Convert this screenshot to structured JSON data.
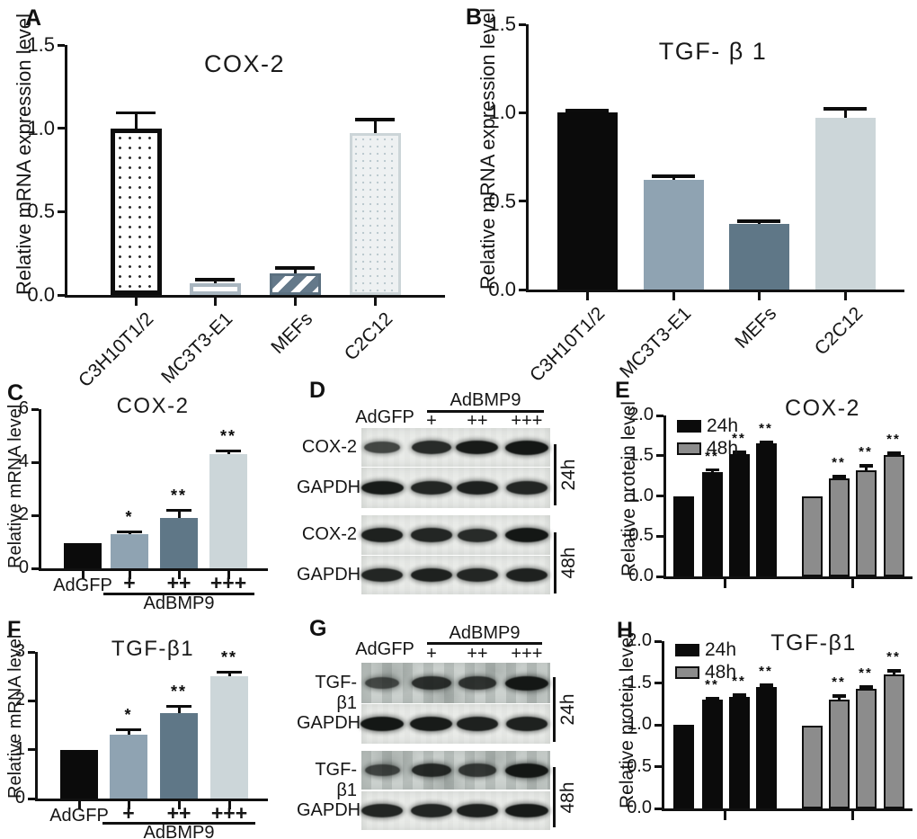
{
  "colors": {
    "black_bar": "#0b0b0b",
    "bluegray_bar": "#8fa3b2",
    "slate_bar": "#5f7787",
    "pale_bar": "#ccd6d9",
    "gray_48h_bar": "#8c8c8c",
    "stripe_slate": "#64798a",
    "outline_light": "#a9b6c0",
    "blot_strip_bg": "#e9ebe8",
    "blot_noisy_bg": "#c9cfcc",
    "band": "#141715",
    "axis": "#111111"
  },
  "chart_data": [
    {
      "panel": "A",
      "type": "bar",
      "title": "COX-2",
      "ylabel": "Relative mRNA expression level",
      "ylim": [
        0,
        1.5
      ],
      "yticks": [
        "0.0",
        "0.5",
        "1.0",
        "1.5"
      ],
      "categories": [
        "C3H10T1/2",
        "MC3T3-E1",
        "MEFs",
        "C2C12"
      ],
      "values": [
        1.0,
        0.07,
        0.13,
        0.97
      ],
      "errors": [
        0.09,
        0.02,
        0.03,
        0.08
      ],
      "sig": [
        "",
        "",
        "",
        ""
      ],
      "bar_styles": [
        "pattern-dots-dark",
        "outline-light",
        "pattern-stripes",
        "pattern-dots-light"
      ]
    },
    {
      "panel": "B",
      "type": "bar",
      "title": "TGF- β 1",
      "ylabel": "Relative mRNA expression level",
      "ylim": [
        0,
        1.5
      ],
      "yticks": [
        "0.0",
        "0.5",
        "1.0",
        "1.5"
      ],
      "categories": [
        "C3H10T1/2",
        "MC3T3-E1",
        "MEFs",
        "C2C12"
      ],
      "values": [
        1.0,
        0.62,
        0.37,
        0.97
      ],
      "errors": [
        0.01,
        0.02,
        0.015,
        0.05
      ],
      "sig": [
        "",
        "",
        "",
        ""
      ],
      "bar_styles": [
        "solid-black",
        "solid-bluegray",
        "solid-slate",
        "solid-pale"
      ]
    },
    {
      "panel": "C",
      "type": "bar",
      "title": "COX-2",
      "ylabel": "Relative mRNA level",
      "ylim": [
        0,
        6
      ],
      "yticks": [
        "0",
        "2",
        "4",
        "6"
      ],
      "categories": [
        "AdGFP",
        "+",
        "++",
        "+++"
      ],
      "group_label": "AdBMP9",
      "values": [
        0.95,
        1.3,
        1.9,
        4.3
      ],
      "errors": [
        0,
        0.07,
        0.28,
        0.12
      ],
      "sig": [
        "",
        "*",
        "**",
        "**"
      ],
      "bar_styles": [
        "solid-black",
        "solid-bluegray",
        "solid-slate",
        "solid-pale"
      ]
    },
    {
      "panel": "D",
      "type": "blot",
      "header": {
        "control": "AdGFP",
        "treatment": "AdBMP9",
        "doses": [
          "+",
          "++",
          "+++"
        ]
      },
      "groups": [
        {
          "time": "24h",
          "rows": [
            {
              "label": "COX-2",
              "noisy": false,
              "lanes": [
                0.55,
                0.8,
                0.95,
                1
              ]
            },
            {
              "label": "GAPDH",
              "noisy": false,
              "lanes": [
                0.95,
                0.85,
                0.9,
                0.85
              ]
            }
          ]
        },
        {
          "time": "48h",
          "rows": [
            {
              "label": "COX-2",
              "noisy": false,
              "lanes": [
                0.9,
                0.85,
                0.8,
                1
              ]
            },
            {
              "label": "GAPDH",
              "noisy": false,
              "lanes": [
                0.85,
                0.9,
                0.85,
                0.9
              ]
            }
          ]
        }
      ]
    },
    {
      "panel": "E",
      "type": "bar",
      "title": "COX-2",
      "ylabel": "Relative protein level",
      "ylim": [
        0,
        2
      ],
      "yticks": [
        "0.0",
        "0.5",
        "1.0",
        "1.5",
        "2.0"
      ],
      "legend": [
        "24h",
        "48h"
      ],
      "series": [
        {
          "name": "24h",
          "values": [
            1.0,
            1.3,
            1.52,
            1.65
          ],
          "errors": [
            0,
            0.02,
            0.02,
            0.02
          ],
          "sig": [
            "",
            "**",
            "**",
            "**"
          ]
        },
        {
          "name": "48h",
          "values": [
            0.99,
            1.22,
            1.32,
            1.51
          ],
          "errors": [
            0,
            0.02,
            0.05,
            0.02
          ],
          "sig": [
            "",
            "**",
            "**",
            "**"
          ]
        }
      ]
    },
    {
      "panel": "F",
      "type": "bar",
      "title": "TGF-β1",
      "ylabel": "Relative mRNA level",
      "ylim": [
        0,
        3
      ],
      "yticks": [
        "0",
        "1",
        "2",
        "3"
      ],
      "categories": [
        "AdGFP",
        "+",
        "++",
        "+++"
      ],
      "group_label": "AdBMP9",
      "values": [
        1.0,
        1.3,
        1.75,
        2.5
      ],
      "errors": [
        0,
        0.1,
        0.13,
        0.08
      ],
      "sig": [
        "",
        "*",
        "**",
        "**"
      ],
      "bar_styles": [
        "solid-black",
        "solid-bluegray",
        "solid-slate",
        "solid-pale"
      ]
    },
    {
      "panel": "G",
      "type": "blot",
      "header": {
        "control": "AdGFP",
        "treatment": "AdBMP9",
        "doses": [
          "+",
          "++",
          "+++"
        ]
      },
      "groups": [
        {
          "time": "24h",
          "rows": [
            {
              "label": "TGF-β1",
              "noisy": true,
              "lanes": [
                0.45,
                0.75,
                0.7,
                1
              ]
            },
            {
              "label": "GAPDH",
              "noisy": false,
              "lanes": [
                1,
                0.95,
                0.9,
                0.9
              ]
            }
          ]
        },
        {
          "time": "48h",
          "rows": [
            {
              "label": "TGF-β1",
              "noisy": true,
              "lanes": [
                0.5,
                0.8,
                0.65,
                1
              ]
            },
            {
              "label": "GAPDH",
              "noisy": false,
              "lanes": [
                0.85,
                0.85,
                0.9,
                0.95
              ]
            }
          ]
        }
      ]
    },
    {
      "panel": "H",
      "type": "bar",
      "title": "TGF-β1",
      "ylabel": "Relative protein level",
      "ylim": [
        0,
        2
      ],
      "yticks": [
        "0.0",
        "0.5",
        "1.0",
        "1.5",
        "2.0"
      ],
      "legend": [
        "24h",
        "48h"
      ],
      "series": [
        {
          "name": "24h",
          "values": [
            1.0,
            1.3,
            1.33,
            1.45
          ],
          "errors": [
            0,
            0.015,
            0.02,
            0.02
          ],
          "sig": [
            "",
            "**",
            "**",
            "**"
          ]
        },
        {
          "name": "48h",
          "values": [
            0.99,
            1.3,
            1.43,
            1.6
          ],
          "errors": [
            0,
            0.04,
            0.02,
            0.04
          ],
          "sig": [
            "",
            "**",
            "**",
            "**"
          ]
        }
      ]
    }
  ]
}
